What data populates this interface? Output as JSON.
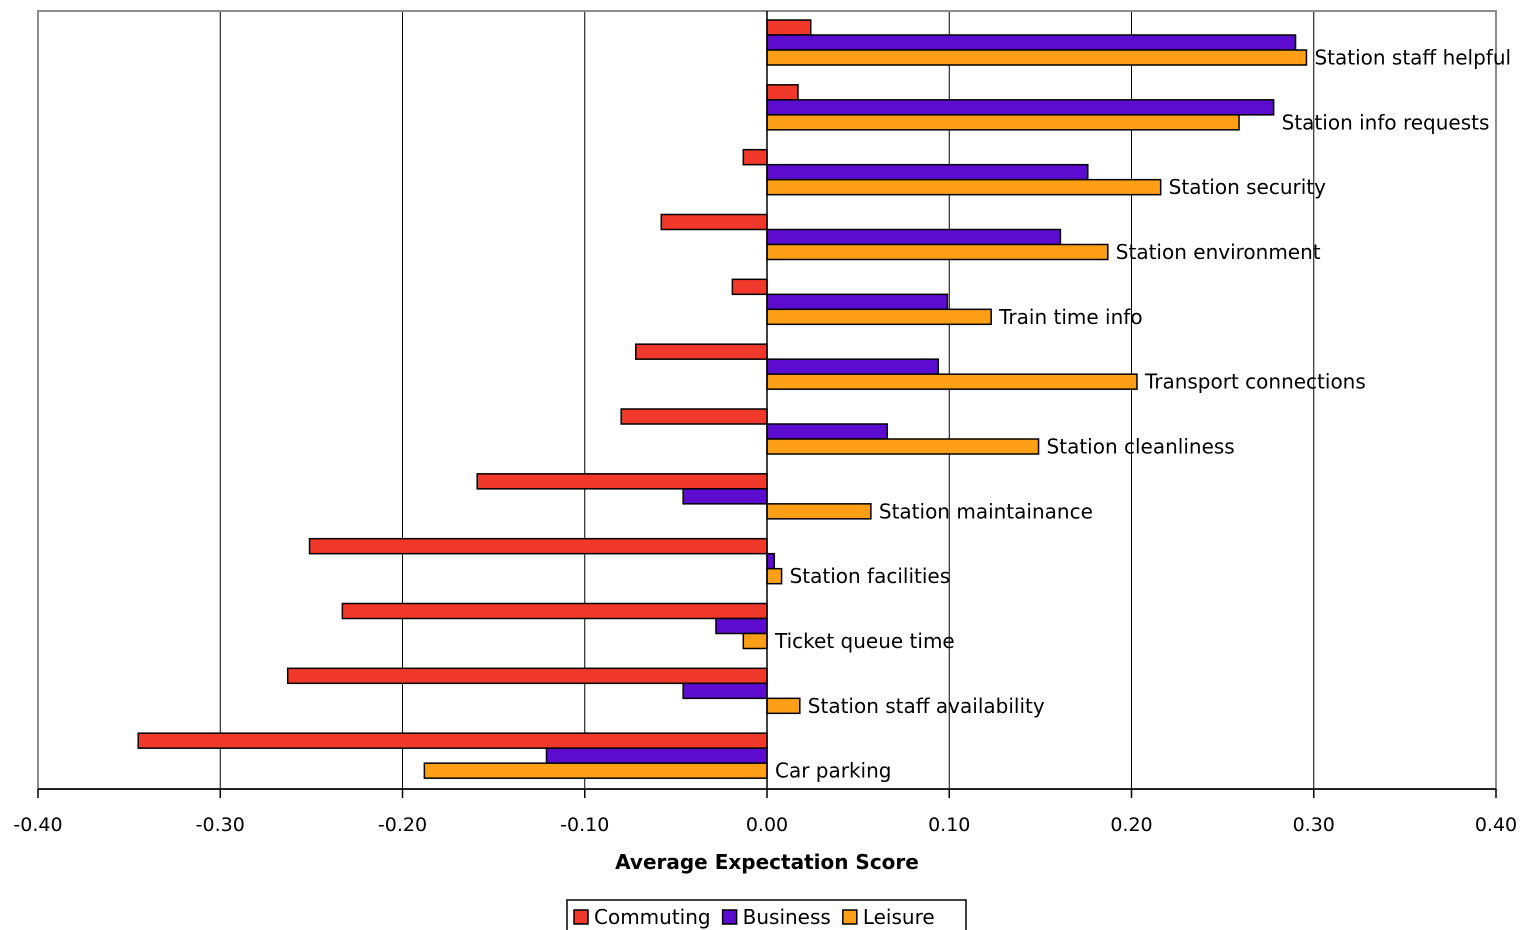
{
  "chart_data": {
    "type": "bar",
    "orientation": "horizontal",
    "xlabel": "Average Expectation Score",
    "ylabel": "",
    "xlim": [
      -0.4,
      0.4
    ],
    "xticks": [
      -0.4,
      -0.3,
      -0.2,
      -0.1,
      0.0,
      0.1,
      0.2,
      0.3,
      0.4
    ],
    "xtick_labels": [
      "-0.40",
      "-0.30",
      "-0.20",
      "-0.10",
      "0.00",
      "0.10",
      "0.20",
      "0.30",
      "0.40"
    ],
    "grid": "vertical",
    "legend": "bottom",
    "categories": [
      "Station staff helpful",
      "Station info requests",
      "Station security",
      "Station environment",
      "Train time info",
      "Transport connections",
      "Station cleanliness",
      "Station maintainance",
      "Station facilities",
      "Ticket queue time",
      "Station staff availability",
      "Car parking"
    ],
    "series": [
      {
        "name": "Commuting",
        "color": "#f0392a",
        "values": [
          0.024,
          0.017,
          -0.013,
          -0.058,
          -0.019,
          -0.072,
          -0.08,
          -0.159,
          -0.251,
          -0.233,
          -0.263,
          -0.345
        ]
      },
      {
        "name": "Business",
        "color": "#5c0ccf",
        "values": [
          0.29,
          0.278,
          0.176,
          0.161,
          0.099,
          0.094,
          0.066,
          -0.046,
          0.004,
          -0.028,
          -0.046,
          -0.121
        ]
      },
      {
        "name": "Leisure",
        "color": "#ff9f17",
        "values": [
          0.296,
          0.259,
          0.216,
          0.187,
          0.123,
          0.203,
          0.149,
          0.057,
          0.008,
          -0.013,
          0.018,
          -0.188
        ]
      }
    ]
  }
}
